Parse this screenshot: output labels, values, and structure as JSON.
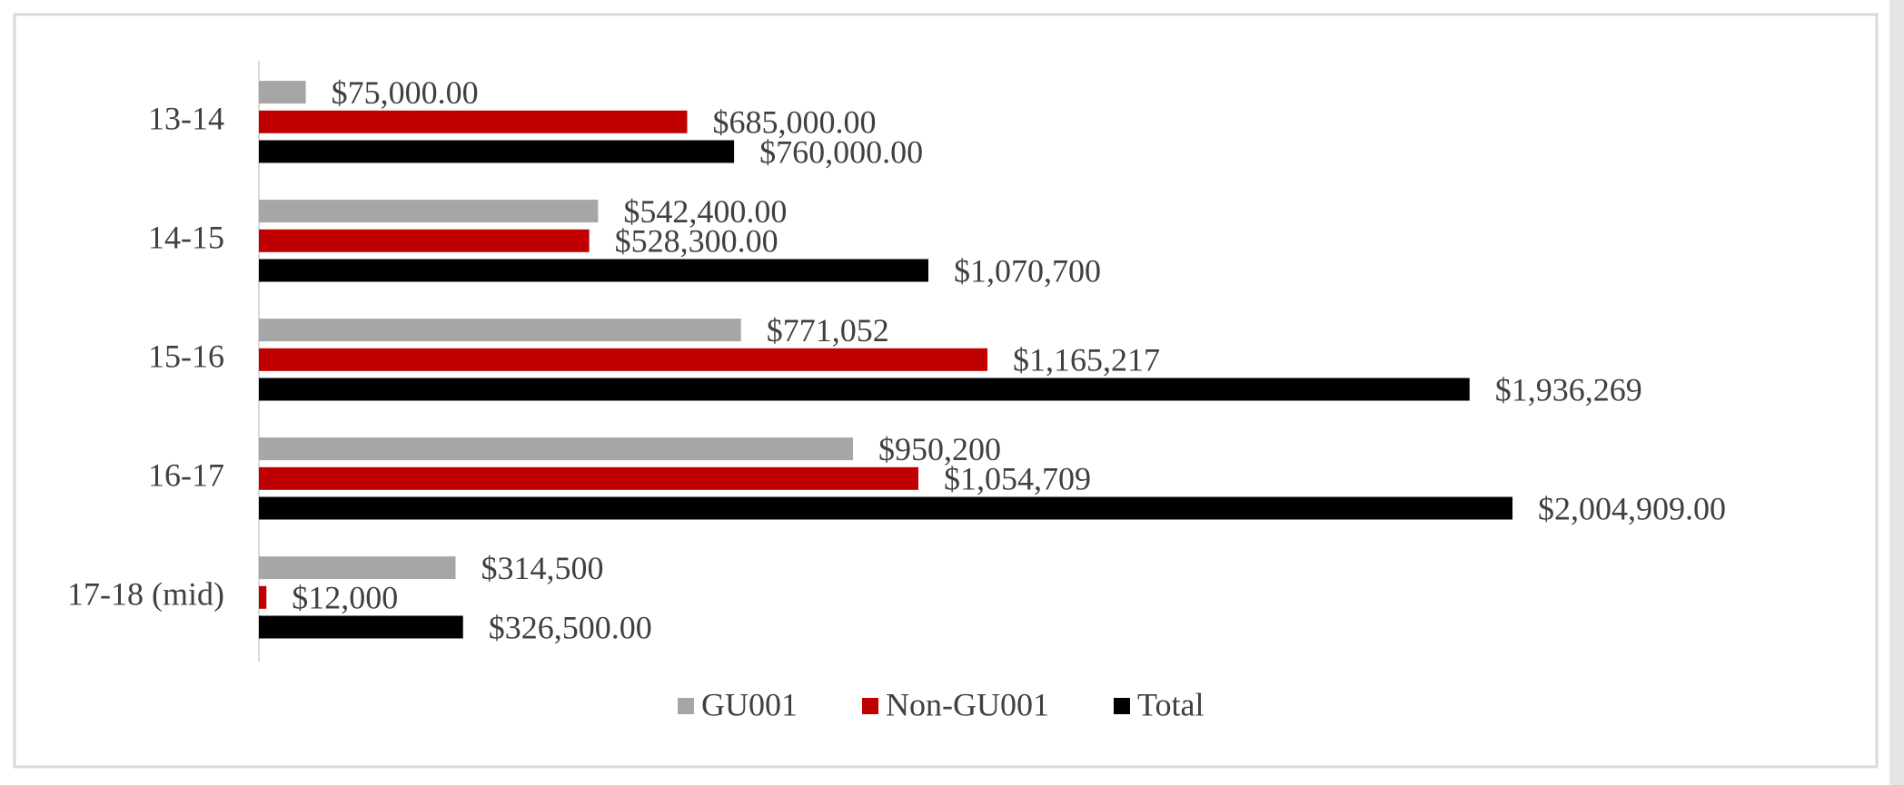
{
  "chart_data": {
    "type": "bar",
    "orientation": "horizontal",
    "categories": [
      "13-14",
      "14-15",
      "15-16",
      "16-17",
      "17-18 (mid)"
    ],
    "series": [
      {
        "name": "GU001",
        "color": "#a6a6a6",
        "values": [
          75000,
          542400,
          771052,
          950200,
          314500
        ],
        "value_labels": [
          "$75,000.00",
          "$542,400.00",
          "$771,052",
          "$950,200",
          "$314,500"
        ]
      },
      {
        "name": "Non-GU001",
        "color": "#c00000",
        "values": [
          685000,
          528300,
          1165217,
          1054709,
          12000
        ],
        "value_labels": [
          "$685,000.00",
          "$528,300.00",
          "$1,165,217",
          "$1,054,709",
          "$12,000"
        ]
      },
      {
        "name": "Total",
        "color": "#000000",
        "values": [
          760000,
          1070700,
          1936269,
          2004909,
          326500
        ],
        "value_labels": [
          "$760,000.00",
          "$1,070,700",
          "$1,936,269",
          "$2,004,909.00",
          "$326,500.00"
        ]
      }
    ],
    "legend": "bottom"
  }
}
